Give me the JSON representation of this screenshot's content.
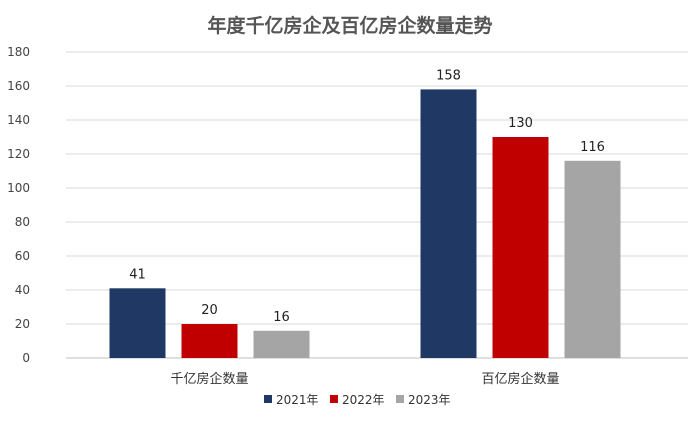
{
  "chart_data": {
    "type": "bar",
    "title": "年度千亿房企及百亿房企数量走势",
    "categories": [
      "千亿房企数量",
      "百亿房企数量"
    ],
    "series": [
      {
        "name": "2021年",
        "color": "#1f3864",
        "values": [
          41,
          158
        ]
      },
      {
        "name": "2022年",
        "color": "#c00000",
        "values": [
          20,
          130
        ]
      },
      {
        "name": "2023年",
        "color": "#a5a5a5",
        "values": [
          16,
          116
        ]
      }
    ],
    "ylim": [
      0,
      180
    ],
    "yticks": [
      0,
      20,
      40,
      60,
      80,
      100,
      120,
      140,
      160,
      180
    ],
    "grid": true,
    "legend_position": "bottom",
    "xlabel": "",
    "ylabel": ""
  }
}
